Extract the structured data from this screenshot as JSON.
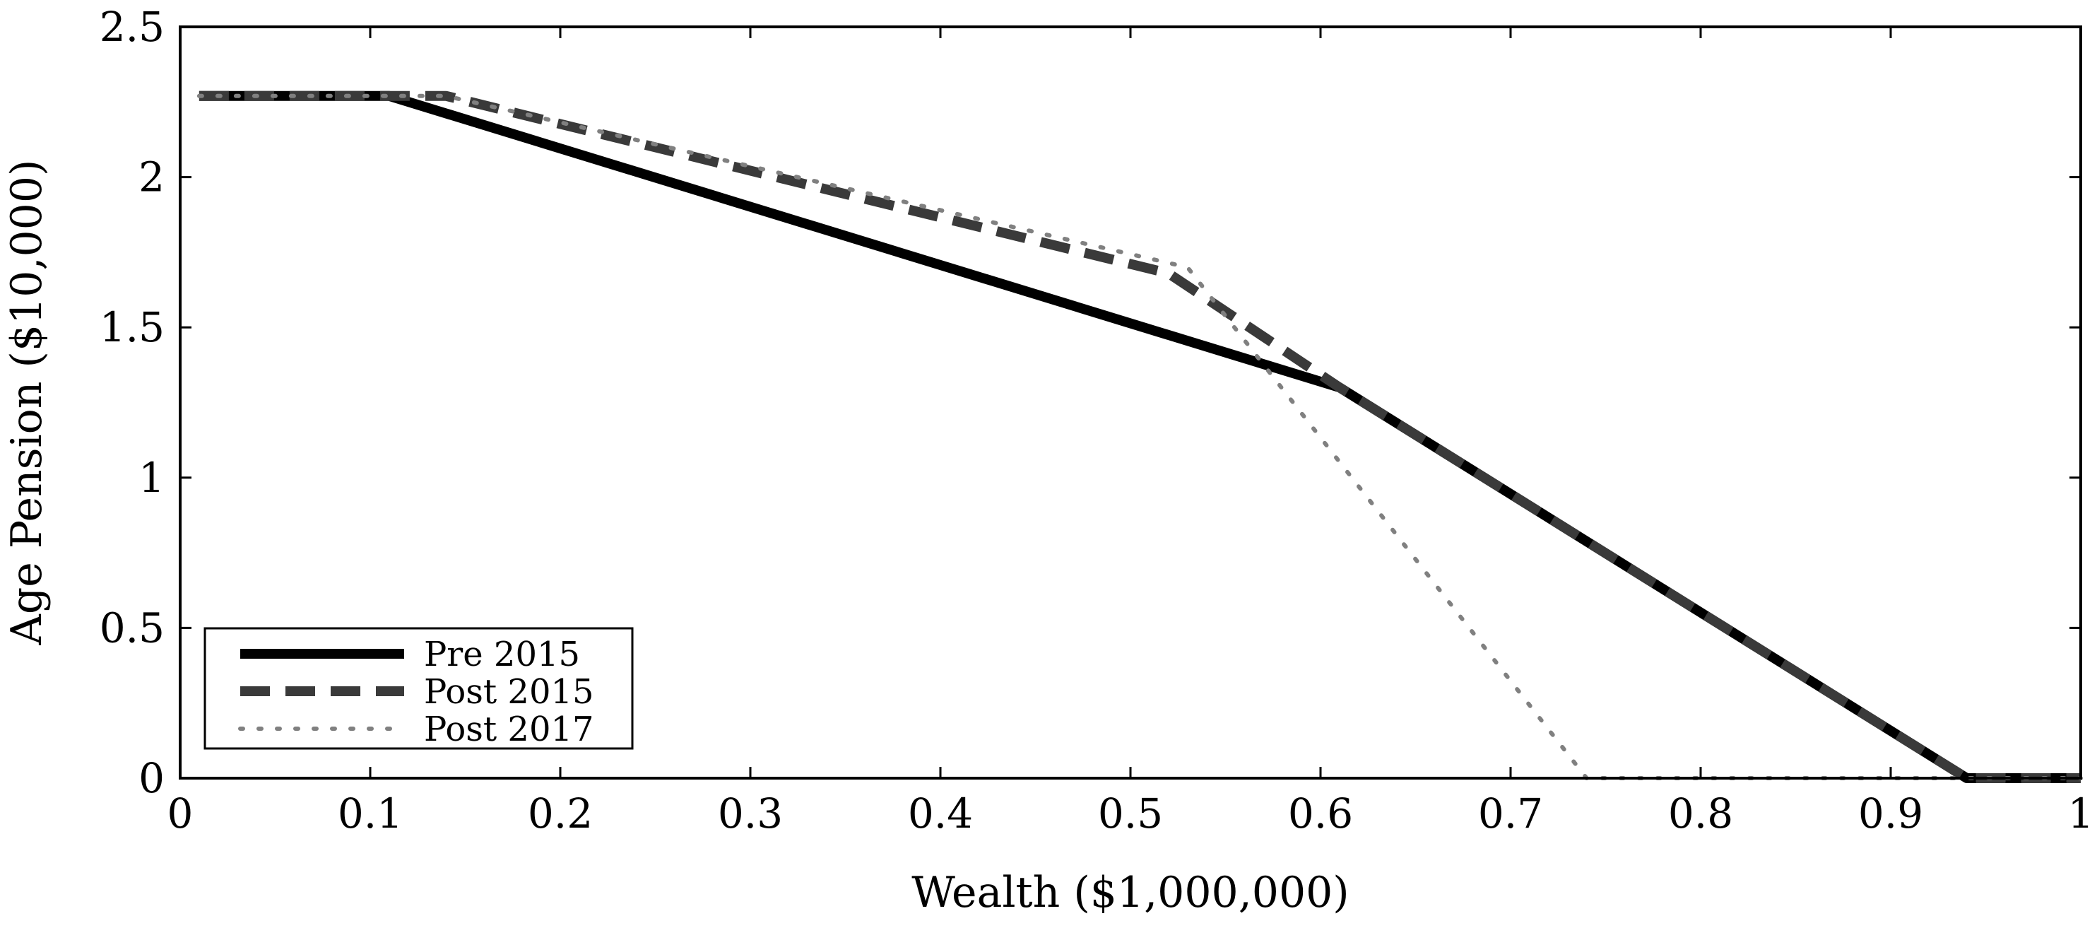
{
  "chart_data": {
    "type": "line",
    "title": "",
    "xlabel": "Wealth ($1,000,000)",
    "ylabel": "Age Pension ($10,000)",
    "xlim": [
      0,
      1
    ],
    "ylim": [
      0,
      2.5
    ],
    "xticks": [
      "0",
      "0.1",
      "0.2",
      "0.3",
      "0.4",
      "0.5",
      "0.6",
      "0.7",
      "0.8",
      "0.9",
      "1"
    ],
    "yticks": [
      "0",
      "0.5",
      "1",
      "1.5",
      "2",
      "2.5"
    ],
    "grid": false,
    "legend_position": "bottom-left",
    "series": [
      {
        "name": "Pre 2015",
        "style": "solid",
        "color": "#000000",
        "x": [
          0.01,
          0.11,
          0.61,
          0.94,
          1.0
        ],
        "y": [
          2.27,
          2.27,
          1.3,
          0.0,
          0.0
        ]
      },
      {
        "name": "Post 2015",
        "style": "dashed",
        "color": "#3a3a3a",
        "x": [
          0.01,
          0.14,
          0.52,
          0.61,
          0.94,
          1.0
        ],
        "y": [
          2.27,
          2.27,
          1.68,
          1.3,
          0.0,
          0.0
        ]
      },
      {
        "name": "Post 2017",
        "style": "dotted",
        "color": "#808080",
        "x": [
          0.01,
          0.14,
          0.53,
          0.74,
          1.0
        ],
        "y": [
          2.27,
          2.27,
          1.7,
          0.0,
          0.0
        ]
      }
    ]
  }
}
